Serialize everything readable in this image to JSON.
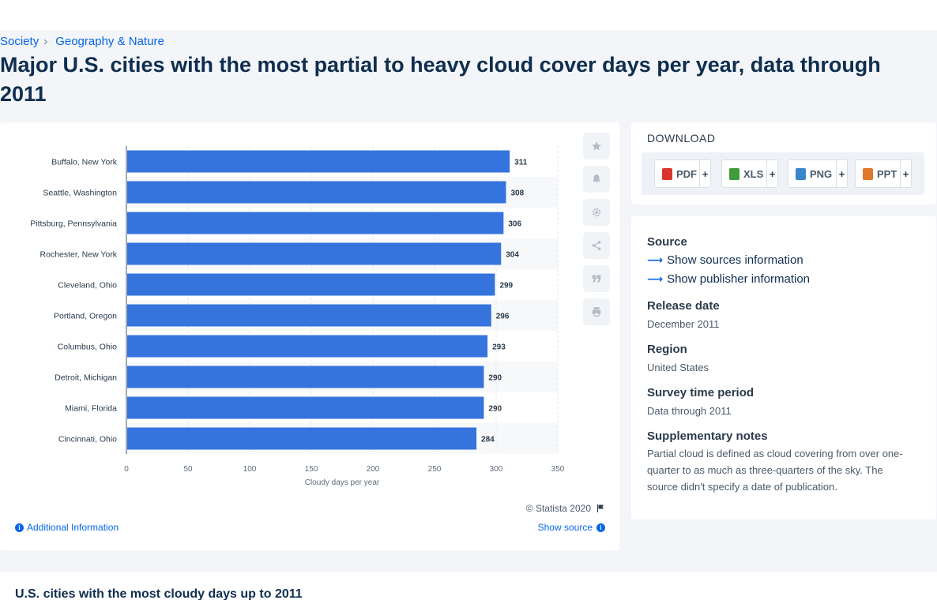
{
  "breadcrumb": {
    "items": [
      "Society",
      "Geography & Nature"
    ],
    "separator": "›"
  },
  "page_title": "Major U.S. cities with the most partial to heavy cloud cover days per year, data through 2011",
  "chart_data": {
    "type": "bar",
    "orientation": "horizontal",
    "title": "",
    "categories": [
      "Buffalo, New York",
      "Seattle, Washington",
      "Pittsburg, Pennsylvania",
      "Rochester, New York",
      "Cleveland, Ohio",
      "Portland, Oregon",
      "Columbus, Ohio",
      "Detroit, Michigan",
      "Miami, Florida",
      "Cincinnati, Ohio"
    ],
    "values": [
      311,
      308,
      306,
      304,
      299,
      296,
      293,
      290,
      290,
      284
    ],
    "xlabel": "Cloudy days per year",
    "ylabel": "",
    "xlim": [
      0,
      350
    ],
    "xticks": [
      0,
      50,
      100,
      150,
      200,
      250,
      300,
      350
    ],
    "grid": true,
    "bar_color": "#3474dc",
    "data_labels": true
  },
  "chart_tools": [
    {
      "name": "favorite",
      "icon": "star-icon"
    },
    {
      "name": "notification",
      "icon": "bell-icon"
    },
    {
      "name": "settings",
      "icon": "gear-icon"
    },
    {
      "name": "share",
      "icon": "share-icon"
    },
    {
      "name": "cite",
      "icon": "quote-icon"
    },
    {
      "name": "print",
      "icon": "print-icon"
    }
  ],
  "chart_footer": {
    "copyright": "© Statista 2020",
    "additional_info": "Additional Information",
    "show_source": "Show source"
  },
  "download": {
    "title": "DOWNLOAD",
    "buttons": [
      {
        "label": "PDF",
        "plus": "+",
        "color": "#d9352e"
      },
      {
        "label": "XLS",
        "plus": "+",
        "color": "#3f9a3c"
      },
      {
        "label": "PNG",
        "plus": "+",
        "color": "#3a86c8"
      },
      {
        "label": "PPT",
        "plus": "+",
        "color": "#e0782b"
      }
    ]
  },
  "info": {
    "source_heading": "Source",
    "show_sources": "Show sources information",
    "show_publisher": "Show publisher information",
    "release_heading": "Release date",
    "release_value": "December 2011",
    "region_heading": "Region",
    "region_value": "United States",
    "survey_heading": "Survey time period",
    "survey_value": "Data through 2011",
    "notes_heading": "Supplementary notes",
    "notes_value": "Partial cloud is defined as cloud covering from over one-quarter to as much as three-quarters of the sky. The source didn't specify a date of publication."
  },
  "related_title": "U.S. cities with the most cloudy days up to 2011"
}
